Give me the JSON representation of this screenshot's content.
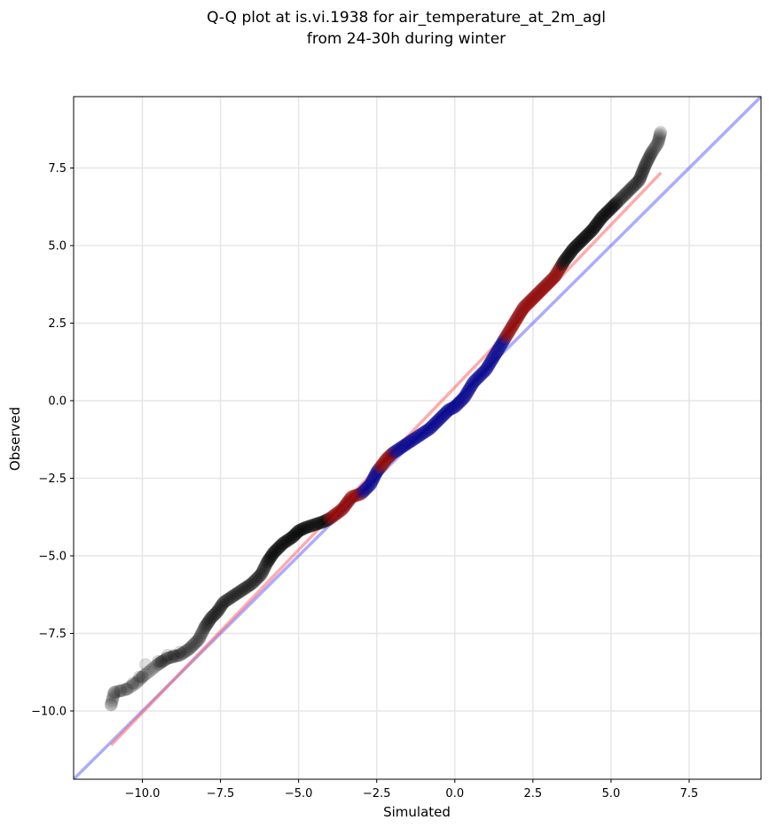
{
  "chart_data": {
    "type": "scatter",
    "title_line1": "Q-Q plot at is.vi.1938 for air_temperature_at_2m_agl",
    "title_line2": "from 24-30h during winter",
    "xlabel": "Simulated",
    "ylabel": "Observed",
    "xlim": [
      -12.2,
      9.8
    ],
    "ylim": [
      -12.2,
      9.8
    ],
    "x_ticks": [
      -10.0,
      -7.5,
      -5.0,
      -2.5,
      0.0,
      2.5,
      5.0,
      7.5
    ],
    "y_ticks": [
      -10.0,
      -7.5,
      -5.0,
      -2.5,
      0.0,
      2.5,
      5.0,
      7.5
    ],
    "x_tick_labels": [
      "−10.0",
      "−7.5",
      "−5.0",
      "−2.5",
      "0.0",
      "2.5",
      "5.0",
      "7.5"
    ],
    "y_tick_labels": [
      "−10.0",
      "−7.5",
      "−5.0",
      "−2.5",
      "0.0",
      "2.5",
      "5.0",
      "7.5"
    ],
    "grid": true,
    "colors": {
      "points": "#000000",
      "points_highlight_red": "#8b0000",
      "points_highlight_blue": "#00008b",
      "identity_line": "#6666ff",
      "fit_line": "#ff6666"
    },
    "identity_line": {
      "from": [
        -12.2,
        -12.2
      ],
      "to": [
        9.8,
        9.8
      ]
    },
    "fit_line": {
      "from": [
        -11.0,
        -11.1
      ],
      "to": [
        6.6,
        7.35
      ]
    },
    "qq_curve": {
      "x": [
        -11.0,
        -10.9,
        -10.5,
        -10.2,
        -10.0,
        -9.5,
        -9.2,
        -8.8,
        -8.5,
        -8.2,
        -8.0,
        -7.8,
        -7.6,
        -7.4,
        -7.1,
        -6.8,
        -6.5,
        -6.2,
        -6.0,
        -5.8,
        -5.5,
        -5.2,
        -5.0,
        -4.8,
        -4.5,
        -4.2,
        -4.0,
        -3.6,
        -3.3,
        -3.0,
        -2.7,
        -2.5,
        -2.2,
        -2.0,
        -1.7,
        -1.4,
        -1.1,
        -0.8,
        -0.5,
        -0.2,
        0.0,
        0.3,
        0.6,
        1.0,
        1.3,
        1.6,
        1.9,
        2.2,
        2.5,
        2.8,
        3.2,
        3.5,
        3.8,
        4.1,
        4.4,
        4.7,
        5.0,
        5.3,
        5.6,
        5.9,
        6.1,
        6.3,
        6.5,
        6.6
      ],
      "y": [
        -9.8,
        -9.4,
        -9.3,
        -9.1,
        -8.9,
        -8.5,
        -8.3,
        -8.2,
        -8.0,
        -7.7,
        -7.3,
        -7.0,
        -6.8,
        -6.5,
        -6.3,
        -6.1,
        -5.9,
        -5.6,
        -5.2,
        -4.9,
        -4.6,
        -4.4,
        -4.2,
        -4.1,
        -4.0,
        -3.9,
        -3.8,
        -3.5,
        -3.1,
        -3.0,
        -2.7,
        -2.3,
        -1.9,
        -1.7,
        -1.5,
        -1.3,
        -1.1,
        -0.9,
        -0.6,
        -0.3,
        -0.2,
        0.1,
        0.6,
        1.0,
        1.5,
        2.0,
        2.5,
        3.0,
        3.3,
        3.6,
        4.0,
        4.5,
        4.9,
        5.2,
        5.5,
        5.9,
        6.2,
        6.5,
        6.8,
        7.1,
        7.6,
        8.0,
        8.3,
        8.7
      ]
    },
    "isolated_points": {
      "x": [
        -11.0,
        -10.9,
        -10.7,
        -10.5,
        -10.3,
        -10.1,
        -10.0,
        -9.9,
        -9.5,
        -9.4,
        -9.2,
        -9.0,
        -8.8
      ],
      "y": [
        -9.8,
        -9.4,
        -9.35,
        -9.3,
        -9.1,
        -8.9,
        -8.9,
        -8.5,
        -8.4,
        -8.4,
        -8.2,
        -8.2,
        -8.1
      ]
    },
    "highlight_segments": [
      {
        "color": "red",
        "x_range": [
          -4.0,
          -3.0
        ]
      },
      {
        "color": "blue",
        "x_range": [
          -3.0,
          -2.4
        ]
      },
      {
        "color": "red",
        "x_range": [
          -2.4,
          -2.0
        ]
      },
      {
        "color": "blue",
        "x_range": [
          -2.0,
          1.6
        ]
      },
      {
        "color": "red",
        "x_range": [
          1.6,
          2.3
        ]
      },
      {
        "color": "red",
        "x_range": [
          2.3,
          3.4
        ]
      }
    ]
  }
}
